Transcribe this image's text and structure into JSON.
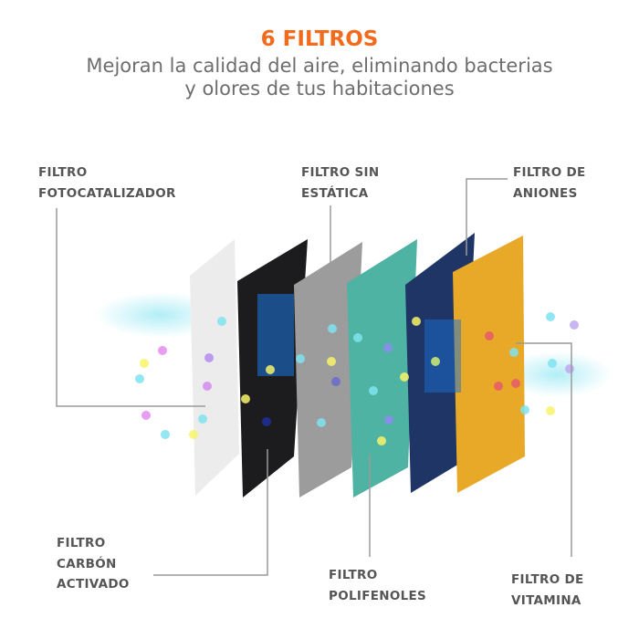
{
  "header": {
    "title": "6 FILTROS",
    "subtitle_line1": "Mejoran la calidad del aire, eliminando bacterias",
    "subtitle_line2": "y olores de tus habitaciones"
  },
  "labels": {
    "fotocatalizador": [
      "FILTRO",
      "FOTOCATALIZADOR"
    ],
    "sin_estatica": [
      "FILTRO SIN",
      "ESTÁTICA"
    ],
    "aniones": [
      "FILTRO DE",
      "ANIONES"
    ],
    "carbon": [
      "FILTRO",
      "CARBÓN",
      "ACTIVADO"
    ],
    "polifenoles": [
      "FILTRO",
      "POLIFENOLES"
    ],
    "vitamina": [
      "FILTRO DE",
      "VITAMINA"
    ]
  },
  "colors": {
    "accent": "#f26b1d",
    "text": "#555555",
    "line": "#9a9a9a",
    "filters": [
      "#ececec",
      "#1c1c1e",
      "#9c9c9c",
      "#4fb3a3",
      "#1e3566",
      "#e8a928"
    ]
  }
}
